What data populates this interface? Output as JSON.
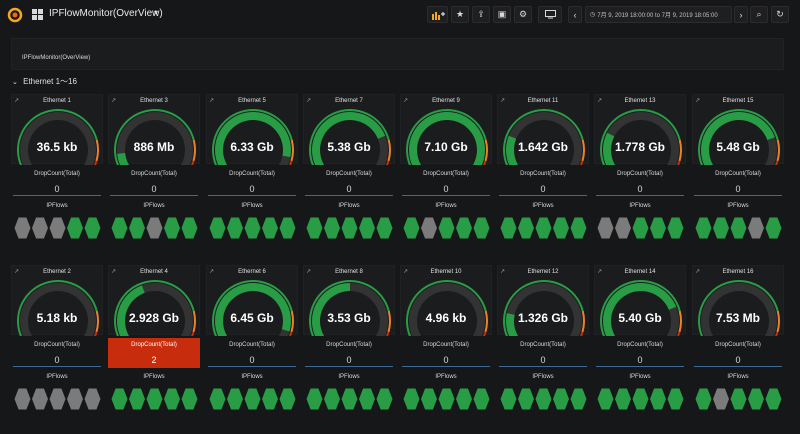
{
  "header": {
    "title": "IPFlowMonitor(OverView)",
    "time_range": "7月 9, 2019 18:00:00 to 7月 9, 2019 18:05:00"
  },
  "text_panel": {
    "title": "IPFlowMonitor(OverView)"
  },
  "row": {
    "title": "Ethernet 1〜16"
  },
  "labels": {
    "dropcount": "DropCount(Total)",
    "ipflows": "IPFlows"
  },
  "colors": {
    "ok": "#299c46",
    "off": "#7b7b7b",
    "warn": "#ed8128",
    "alert": "#c72c0c",
    "gauge_bg": "#333333"
  },
  "panels": [
    {
      "name": "Ethernet 1",
      "value": "36.5 kb",
      "level": 0.0,
      "drop": "0",
      "drop_alert": false,
      "flows": [
        "off",
        "off",
        "off",
        "ok",
        "ok"
      ]
    },
    {
      "name": "Ethernet 3",
      "value": "886 Mb",
      "level": 0.12,
      "drop": "0",
      "drop_alert": false,
      "flows": [
        "ok",
        "ok",
        "off",
        "ok",
        "ok"
      ]
    },
    {
      "name": "Ethernet 5",
      "value": "6.33 Gb",
      "level": 0.9,
      "drop": "0",
      "drop_alert": false,
      "flows": [
        "ok",
        "ok",
        "ok",
        "ok",
        "ok"
      ]
    },
    {
      "name": "Ethernet 7",
      "value": "5.38 Gb",
      "level": 0.77,
      "drop": "0",
      "drop_alert": false,
      "flows": [
        "ok",
        "ok",
        "ok",
        "ok",
        "ok"
      ]
    },
    {
      "name": "Ethernet 9",
      "value": "7.10 Gb",
      "level": 1.0,
      "drop": "0",
      "drop_alert": false,
      "flows": [
        "ok",
        "off",
        "ok",
        "ok",
        "ok"
      ]
    },
    {
      "name": "Ethernet 11",
      "value": "1.642 Gb",
      "level": 0.23,
      "drop": "0",
      "drop_alert": false,
      "flows": [
        "ok",
        "ok",
        "ok",
        "ok",
        "ok"
      ]
    },
    {
      "name": "Ethernet 13",
      "value": "1.778 Gb",
      "level": 0.25,
      "drop": "0",
      "drop_alert": false,
      "flows": [
        "off",
        "off",
        "ok",
        "ok",
        "ok"
      ]
    },
    {
      "name": "Ethernet 15",
      "value": "5.48 Gb",
      "level": 0.78,
      "drop": "0",
      "drop_alert": false,
      "flows": [
        "ok",
        "ok",
        "ok",
        "off",
        "ok"
      ]
    },
    {
      "name": "Ethernet 2",
      "value": "5.18 kb",
      "level": 0.0,
      "drop": "0",
      "drop_alert": false,
      "flows": [
        "off",
        "off",
        "off",
        "off",
        "off"
      ]
    },
    {
      "name": "Ethernet 4",
      "value": "2.928 Gb",
      "level": 0.42,
      "drop": "2",
      "drop_alert": true,
      "flows": [
        "ok",
        "ok",
        "ok",
        "ok",
        "ok"
      ]
    },
    {
      "name": "Ethernet 6",
      "value": "6.45 Gb",
      "level": 0.92,
      "drop": "0",
      "drop_alert": false,
      "flows": [
        "ok",
        "ok",
        "ok",
        "ok",
        "ok"
      ]
    },
    {
      "name": "Ethernet 8",
      "value": "3.53 Gb",
      "level": 0.5,
      "drop": "0",
      "drop_alert": false,
      "flows": [
        "ok",
        "ok",
        "ok",
        "ok",
        "ok"
      ]
    },
    {
      "name": "Ethernet 10",
      "value": "4.96 kb",
      "level": 0.0,
      "drop": "0",
      "drop_alert": false,
      "flows": [
        "ok",
        "ok",
        "ok",
        "ok",
        "ok"
      ]
    },
    {
      "name": "Ethernet 12",
      "value": "1.326 Gb",
      "level": 0.19,
      "drop": "0",
      "drop_alert": false,
      "flows": [
        "ok",
        "ok",
        "ok",
        "ok",
        "ok"
      ]
    },
    {
      "name": "Ethernet 14",
      "value": "5.40 Gb",
      "level": 0.77,
      "drop": "0",
      "drop_alert": false,
      "flows": [
        "ok",
        "ok",
        "ok",
        "ok",
        "ok"
      ]
    },
    {
      "name": "Ethernet 16",
      "value": "7.53 Mb",
      "level": 0.0,
      "drop": "0",
      "drop_alert": false,
      "flows": [
        "ok",
        "off",
        "ok",
        "ok",
        "ok"
      ]
    }
  ]
}
